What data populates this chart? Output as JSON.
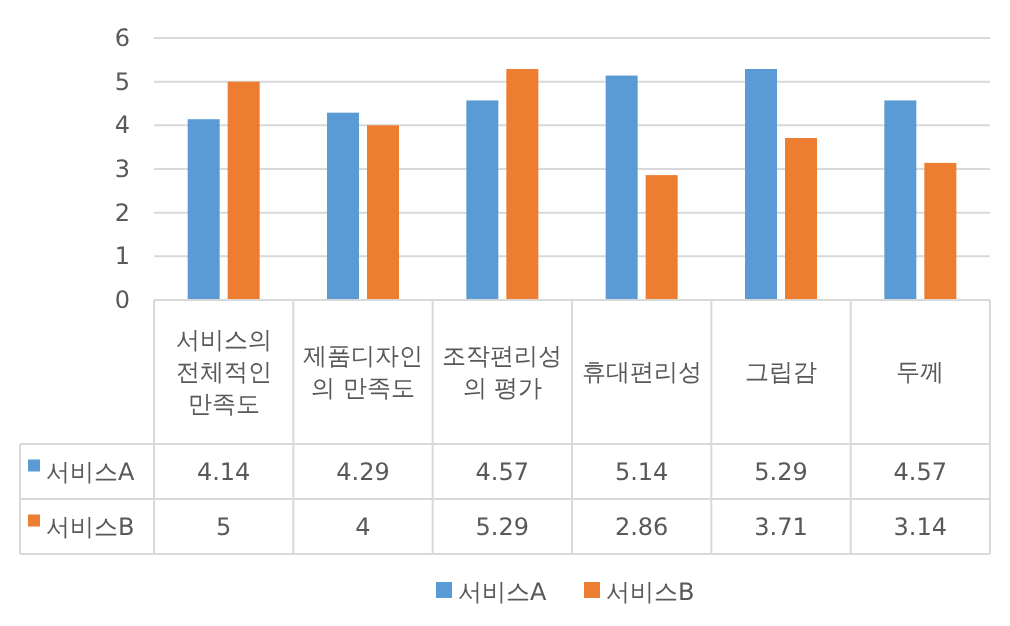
{
  "chart_data": {
    "type": "bar",
    "categories": [
      "서비스의 전체적인 만족도",
      "제품디자인의 만족도",
      "조작편리성의 평가",
      "휴대편리성",
      "그립감",
      "두께"
    ],
    "series": [
      {
        "name": "서비스A",
        "color": "#5b9bd5",
        "values": [
          4.14,
          4.29,
          4.57,
          5.14,
          5.29,
          4.57
        ]
      },
      {
        "name": "서비스B",
        "color": "#ed7d31",
        "values": [
          5,
          4,
          5.29,
          2.86,
          3.71,
          3.14
        ]
      }
    ],
    "ylim": [
      0,
      6
    ],
    "yticks": [
      0,
      1,
      2,
      3,
      4,
      5,
      6
    ],
    "grid": "y",
    "legend": "bottom",
    "data_labels": true
  }
}
